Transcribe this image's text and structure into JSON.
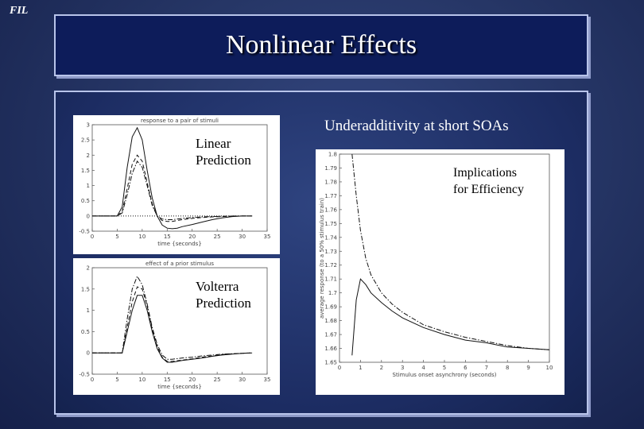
{
  "logo": "FIL",
  "title": "Nonlinear Effects",
  "left_top_label": [
    "Linear",
    "Prediction"
  ],
  "left_bottom_label": [
    "Volterra",
    "Prediction"
  ],
  "right_heading": "Underadditivity at short SOAs",
  "right_label": [
    "Implications",
    "for Efficiency"
  ],
  "chart_data": [
    {
      "type": "line",
      "title": "response to a pair of stimuli",
      "xlabel": "time {seconds}",
      "xlim": [
        0,
        35
      ],
      "ylim": [
        -0.5,
        3
      ],
      "xticks": [
        0,
        5,
        10,
        15,
        20,
        25,
        30,
        35
      ],
      "yticks": [
        -0.5,
        0,
        0.5,
        1,
        1.5,
        2,
        2.5,
        3
      ],
      "series": [
        {
          "style": "solid",
          "x": [
            0,
            5,
            6,
            7,
            8,
            9,
            10,
            11,
            12,
            13,
            14,
            15,
            16,
            17,
            18,
            20,
            22,
            24,
            26,
            28,
            30,
            32
          ],
          "y": [
            0,
            0,
            0.3,
            1.6,
            2.6,
            2.9,
            2.5,
            1.5,
            0.6,
            0.0,
            -0.3,
            -0.4,
            -0.42,
            -0.4,
            -0.35,
            -0.28,
            -0.2,
            -0.12,
            -0.06,
            -0.02,
            0,
            0
          ]
        },
        {
          "style": "dashed",
          "x": [
            0,
            5,
            6,
            7,
            8,
            9,
            10,
            11,
            12,
            13,
            14,
            15,
            16,
            17,
            18,
            20,
            22,
            24,
            26,
            28,
            30,
            32
          ],
          "y": [
            0,
            0,
            0.15,
            0.9,
            1.7,
            2.0,
            1.8,
            1.1,
            0.4,
            0.0,
            -0.15,
            -0.18,
            -0.18,
            -0.15,
            -0.12,
            -0.08,
            -0.05,
            -0.03,
            -0.02,
            -0.01,
            0,
            0
          ]
        },
        {
          "style": "dashdot",
          "x": [
            0,
            5,
            6,
            7,
            8,
            9,
            10,
            11,
            12,
            13,
            14,
            15,
            16,
            17,
            18,
            20,
            22,
            24,
            26,
            28,
            30,
            32
          ],
          "y": [
            0,
            0,
            0.1,
            0.7,
            1.4,
            1.8,
            1.6,
            1.0,
            0.35,
            0.0,
            -0.1,
            -0.12,
            -0.12,
            -0.1,
            -0.08,
            -0.05,
            -0.03,
            -0.02,
            -0.01,
            0,
            0,
            0
          ]
        },
        {
          "style": "dotted",
          "x": [
            0,
            32
          ],
          "y": [
            0,
            0
          ]
        }
      ]
    },
    {
      "type": "line",
      "title": "effect of a prior stimulus",
      "xlabel": "time {seconds}",
      "xlim": [
        0,
        35
      ],
      "ylim": [
        -0.5,
        2
      ],
      "xticks": [
        0,
        5,
        10,
        15,
        20,
        25,
        30,
        35
      ],
      "yticks": [
        -0.5,
        0,
        0.5,
        1,
        1.5,
        2
      ],
      "series": [
        {
          "style": "solid",
          "x": [
            0,
            6,
            7,
            8,
            9,
            10,
            11,
            12,
            13,
            14,
            15,
            16,
            18,
            20,
            22,
            24,
            26,
            28,
            30,
            32
          ],
          "y": [
            0,
            0,
            0.5,
            1.0,
            1.35,
            1.35,
            1.0,
            0.5,
            0.1,
            -0.12,
            -0.22,
            -0.22,
            -0.18,
            -0.15,
            -0.12,
            -0.08,
            -0.05,
            -0.03,
            -0.01,
            0
          ]
        },
        {
          "style": "dashed",
          "x": [
            0,
            6,
            7,
            8,
            9,
            10,
            11,
            12,
            13,
            14,
            15,
            16,
            18,
            20,
            22,
            24,
            26,
            28,
            30,
            32
          ],
          "y": [
            0,
            0,
            0.6,
            1.2,
            1.55,
            1.5,
            1.1,
            0.55,
            0.15,
            -0.1,
            -0.2,
            -0.2,
            -0.17,
            -0.14,
            -0.1,
            -0.07,
            -0.04,
            -0.02,
            -0.01,
            0
          ]
        },
        {
          "style": "dashdot",
          "x": [
            0,
            6,
            7,
            8,
            9,
            10,
            11,
            12,
            13,
            14,
            15,
            16,
            18,
            20,
            22,
            24,
            26,
            28,
            30,
            32
          ],
          "y": [
            0,
            0,
            0.8,
            1.5,
            1.8,
            1.6,
            1.15,
            0.6,
            0.2,
            -0.05,
            -0.15,
            -0.15,
            -0.12,
            -0.1,
            -0.07,
            -0.05,
            -0.03,
            -0.02,
            -0.01,
            0
          ]
        }
      ]
    },
    {
      "type": "line",
      "xlabel": "Stimulus onset asynchrony (seconds)",
      "ylabel": "average response (to a 50% stimulus train)",
      "xlim": [
        0,
        10
      ],
      "ylim": [
        1.65,
        1.8
      ],
      "xticks": [
        0,
        1,
        2,
        3,
        4,
        5,
        6,
        7,
        8,
        9,
        10
      ],
      "yticks": [
        1.65,
        1.66,
        1.67,
        1.68,
        1.69,
        1.7,
        1.71,
        1.72,
        1.73,
        1.74,
        1.75,
        1.76,
        1.77,
        1.78,
        1.79,
        1.8
      ],
      "series": [
        {
          "style": "dashdot",
          "x": [
            0.6,
            0.8,
            1,
            1.25,
            1.5,
            2,
            2.5,
            3,
            4,
            5,
            6,
            7,
            8,
            9,
            10
          ],
          "y": [
            1.8,
            1.77,
            1.745,
            1.725,
            1.713,
            1.7,
            1.692,
            1.686,
            1.677,
            1.672,
            1.668,
            1.665,
            1.662,
            1.66,
            1.659
          ]
        },
        {
          "style": "solid",
          "x": [
            0.6,
            0.8,
            1,
            1.25,
            1.5,
            2,
            2.5,
            3,
            4,
            5,
            6,
            7,
            8,
            9,
            10
          ],
          "y": [
            1.655,
            1.695,
            1.71,
            1.706,
            1.7,
            1.693,
            1.687,
            1.682,
            1.675,
            1.67,
            1.666,
            1.664,
            1.661,
            1.66,
            1.659
          ]
        }
      ]
    }
  ]
}
